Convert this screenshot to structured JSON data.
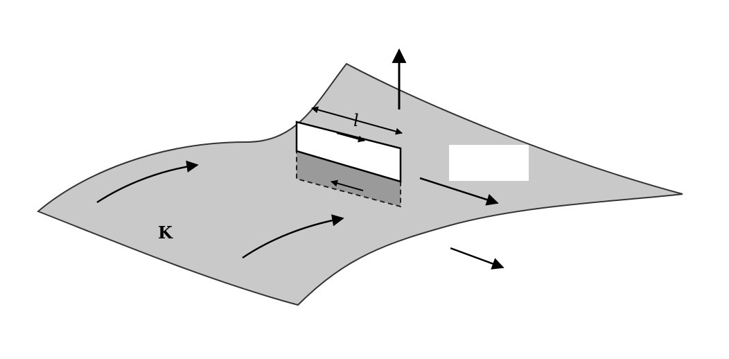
{
  "diagram": {
    "labels": {
      "surface_current": "K",
      "loop_length": "l"
    },
    "colors": {
      "sheet_fill": "#c9c9c9",
      "sheet_edge": "#333333",
      "loop_front_fill": "#ffffff",
      "loop_lower_fill": "#9a9a9a",
      "arrow": "#000000"
    }
  }
}
